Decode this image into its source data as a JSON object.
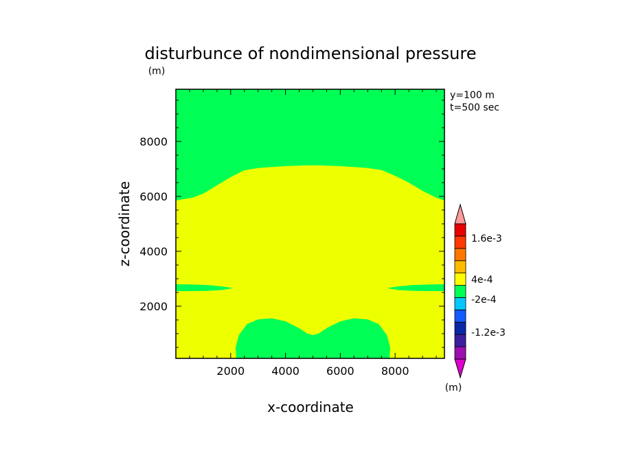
{
  "chart_data": {
    "type": "contour",
    "title": "disturbunce of nondimensional pressure",
    "x_unit": "(m)",
    "xlabel": "x-coordinate",
    "ylabel": "z-coordinate",
    "xlim": [
      0,
      9800
    ],
    "ylim": [
      100,
      9900
    ],
    "x_ticks": [
      2000,
      4000,
      6000,
      8000
    ],
    "y_ticks": [
      2000,
      4000,
      6000,
      8000
    ],
    "annotations": [
      "y=100 m",
      "t=500 sec"
    ],
    "colorbar": {
      "unit": "(m)",
      "labels": [
        "1.6e-3",
        "4e-4",
        "-2e-4",
        "-1.2e-3"
      ],
      "colors": [
        "#dd00cc",
        "#9a11b0",
        "#3c1e9e",
        "#0a28a6",
        "#1459ff",
        "#00c8ff",
        "#00ff55",
        "#ffff00",
        "#ffbb00",
        "#ff7700",
        "#ff3a00",
        "#e60000",
        "#ff9a9a"
      ]
    },
    "regions": [
      {
        "name": "upper-green",
        "color": "#00ff55",
        "level": "-2e-4 .. 0",
        "points": [
          [
            0,
            9900
          ],
          [
            9800,
            9900
          ],
          [
            9800,
            5850
          ],
          [
            9500,
            5950
          ],
          [
            9000,
            6200
          ],
          [
            8500,
            6500
          ],
          [
            8000,
            6750
          ],
          [
            7500,
            6960
          ],
          [
            7000,
            7030
          ],
          [
            6500,
            7070
          ],
          [
            6000,
            7100
          ],
          [
            5500,
            7120
          ],
          [
            5000,
            7130
          ],
          [
            4500,
            7120
          ],
          [
            4000,
            7100
          ],
          [
            3500,
            7070
          ],
          [
            3000,
            7030
          ],
          [
            2500,
            6950
          ],
          [
            2000,
            6700
          ],
          [
            1500,
            6400
          ],
          [
            1000,
            6100
          ],
          [
            600,
            5950
          ],
          [
            0,
            5850
          ]
        ]
      },
      {
        "name": "left-lens",
        "color": "#00ff55",
        "level": "-2e-4 .. 0",
        "points": [
          [
            0,
            2800
          ],
          [
            600,
            2790
          ],
          [
            1200,
            2770
          ],
          [
            1700,
            2720
          ],
          [
            2100,
            2660
          ],
          [
            1700,
            2590
          ],
          [
            1200,
            2560
          ],
          [
            600,
            2550
          ],
          [
            0,
            2550
          ]
        ]
      },
      {
        "name": "right-lens",
        "color": "#00ff55",
        "level": "-2e-4 .. 0",
        "points": [
          [
            9800,
            2800
          ],
          [
            9200,
            2790
          ],
          [
            8600,
            2770
          ],
          [
            8100,
            2720
          ],
          [
            7700,
            2660
          ],
          [
            8100,
            2590
          ],
          [
            8600,
            2560
          ],
          [
            9200,
            2550
          ],
          [
            9800,
            2550
          ]
        ]
      },
      {
        "name": "bottom-lobes",
        "color": "#00ff55",
        "level": "-2e-4 .. 0",
        "points": [
          [
            2200,
            100
          ],
          [
            2180,
            500
          ],
          [
            2300,
            950
          ],
          [
            2600,
            1350
          ],
          [
            3000,
            1520
          ],
          [
            3500,
            1560
          ],
          [
            4000,
            1450
          ],
          [
            4500,
            1200
          ],
          [
            4800,
            1000
          ],
          [
            5000,
            950
          ],
          [
            5200,
            1000
          ],
          [
            5500,
            1200
          ],
          [
            6000,
            1450
          ],
          [
            6500,
            1560
          ],
          [
            7000,
            1520
          ],
          [
            7400,
            1350
          ],
          [
            7700,
            950
          ],
          [
            7820,
            500
          ],
          [
            7800,
            100
          ]
        ]
      }
    ]
  }
}
